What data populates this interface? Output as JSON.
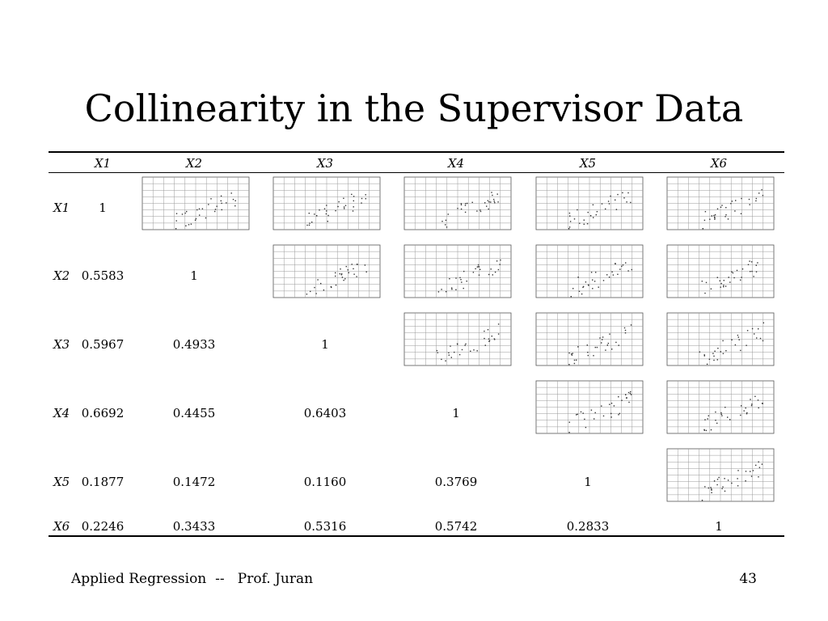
{
  "title": "Collinearity in the Supervisor Data",
  "columns": [
    "X1",
    "X2",
    "X3",
    "X4",
    "X5",
    "X6"
  ],
  "rows": [
    {
      "label": "X1",
      "values": [
        "1",
        "",
        "",
        "",
        "",
        ""
      ]
    },
    {
      "label": "X2",
      "values": [
        "0.5583",
        "1",
        "",
        "",
        "",
        ""
      ]
    },
    {
      "label": "X3",
      "values": [
        "0.5967",
        "0.4933",
        "1",
        "",
        "",
        ""
      ]
    },
    {
      "label": "X4",
      "values": [
        "0.6692",
        "0.4455",
        "0.6403",
        "1",
        "",
        ""
      ]
    },
    {
      "label": "X5",
      "values": [
        "0.1877",
        "0.1472",
        "0.1160",
        "0.3769",
        "1",
        ""
      ]
    },
    {
      "label": "X6",
      "values": [
        "0.2246",
        "0.3433",
        "0.5316",
        "0.5742",
        "0.2833",
        "1"
      ]
    }
  ],
  "scatter_thumbnails": [
    "X1-X2",
    "X1-X3",
    "X1-X4",
    "X1-X5",
    "X1-X6",
    "X2-X3",
    "X2-X4",
    "X2-X5",
    "X2-X6",
    "X3-X4",
    "X3-X5",
    "X3-X6",
    "X4-X5",
    "X4-X6",
    "X5-X6"
  ],
  "footer": {
    "left": "Applied Regression  --   Prof. Juran",
    "page_number": "43"
  }
}
